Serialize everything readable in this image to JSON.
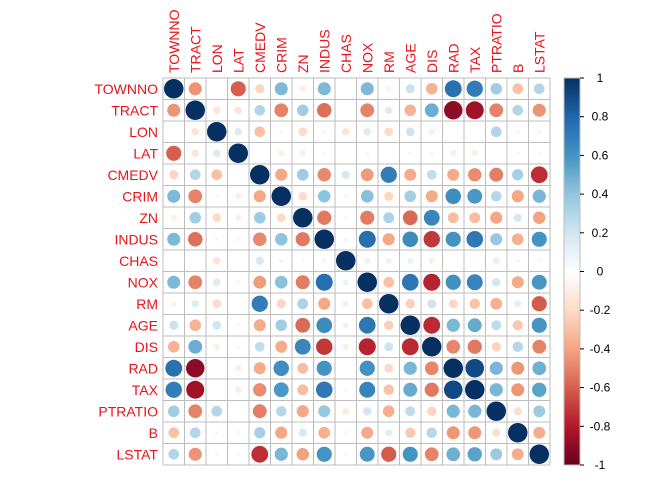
{
  "chart_data": {
    "type": "heatmap",
    "style": "circle correlation matrix",
    "variables": [
      "TOWNNO",
      "TRACT",
      "LON",
      "LAT",
      "CMEDV",
      "CRIM",
      "ZN",
      "INDUS",
      "CHAS",
      "NOX",
      "RM",
      "AGE",
      "DIS",
      "RAD",
      "TAX",
      "PTRATIO",
      "B",
      "LSTAT"
    ],
    "matrix": [
      [
        1.0,
        -0.45,
        0.0,
        -0.6,
        -0.22,
        0.45,
        -0.1,
        0.45,
        0.0,
        0.45,
        -0.08,
        0.22,
        -0.35,
        0.75,
        0.7,
        0.35,
        -0.3,
        0.3
      ],
      [
        -0.45,
        1.0,
        -0.15,
        -0.15,
        0.3,
        -0.5,
        0.35,
        -0.55,
        0.0,
        -0.5,
        0.15,
        -0.35,
        0.5,
        -0.9,
        -0.85,
        -0.5,
        0.3,
        -0.45
      ],
      [
        0.0,
        -0.15,
        1.0,
        0.15,
        -0.3,
        -0.05,
        -0.2,
        0.05,
        -0.15,
        0.15,
        -0.2,
        0.2,
        -0.1,
        0.0,
        0.0,
        0.3,
        -0.05,
        0.05
      ],
      [
        -0.6,
        -0.15,
        0.15,
        1.0,
        0.0,
        -0.1,
        -0.1,
        -0.05,
        0.0,
        -0.05,
        0.0,
        -0.05,
        -0.05,
        -0.1,
        -0.1,
        0.0,
        0.05,
        -0.05
      ],
      [
        -0.22,
        0.3,
        -0.3,
        0.0,
        1.0,
        -0.39,
        0.36,
        -0.48,
        0.18,
        -0.43,
        0.7,
        -0.38,
        0.25,
        -0.38,
        -0.47,
        -0.51,
        0.33,
        -0.74
      ],
      [
        0.45,
        -0.5,
        -0.05,
        -0.1,
        -0.39,
        1.0,
        -0.2,
        0.41,
        -0.06,
        0.42,
        -0.22,
        0.35,
        -0.38,
        0.63,
        0.58,
        0.29,
        -0.39,
        0.46
      ],
      [
        -0.1,
        0.35,
        -0.2,
        -0.1,
        0.36,
        -0.2,
        1.0,
        -0.53,
        -0.04,
        -0.52,
        0.31,
        -0.57,
        0.66,
        -0.31,
        -0.31,
        -0.39,
        0.18,
        -0.41
      ],
      [
        0.45,
        -0.55,
        0.05,
        -0.05,
        -0.48,
        0.41,
        -0.53,
        1.0,
        0.06,
        0.76,
        -0.39,
        0.64,
        -0.71,
        0.6,
        0.72,
        0.38,
        -0.36,
        0.6
      ],
      [
        0.0,
        0.0,
        -0.15,
        0.0,
        0.18,
        -0.06,
        -0.04,
        0.06,
        1.0,
        0.09,
        0.09,
        0.09,
        -0.1,
        -0.01,
        -0.04,
        -0.12,
        0.05,
        -0.05
      ],
      [
        0.45,
        -0.5,
        0.15,
        -0.05,
        -0.43,
        0.42,
        -0.52,
        0.76,
        0.09,
        1.0,
        -0.3,
        0.73,
        -0.77,
        0.61,
        0.67,
        0.19,
        -0.38,
        0.59
      ],
      [
        -0.08,
        0.15,
        -0.2,
        0.0,
        0.7,
        -0.22,
        0.31,
        -0.39,
        0.09,
        -0.3,
        1.0,
        -0.24,
        0.21,
        -0.21,
        -0.29,
        -0.36,
        0.13,
        -0.61
      ],
      [
        0.22,
        -0.35,
        0.2,
        -0.05,
        -0.38,
        0.35,
        -0.57,
        0.64,
        0.09,
        0.73,
        -0.24,
        1.0,
        -0.75,
        0.46,
        0.51,
        0.26,
        -0.27,
        0.6
      ],
      [
        -0.35,
        0.5,
        -0.1,
        -0.05,
        0.25,
        -0.38,
        0.66,
        -0.71,
        -0.1,
        -0.77,
        0.21,
        -0.75,
        1.0,
        -0.49,
        -0.53,
        -0.23,
        0.29,
        -0.5
      ],
      [
        0.75,
        -0.9,
        0.0,
        -0.1,
        -0.38,
        0.63,
        -0.31,
        0.6,
        -0.01,
        0.61,
        -0.21,
        0.46,
        -0.49,
        1.0,
        0.91,
        0.46,
        -0.44,
        0.49
      ],
      [
        0.7,
        -0.85,
        0.0,
        -0.1,
        -0.47,
        0.58,
        -0.31,
        0.72,
        -0.04,
        0.67,
        -0.29,
        0.51,
        -0.53,
        0.91,
        1.0,
        0.46,
        -0.44,
        0.54
      ],
      [
        0.35,
        -0.5,
        0.3,
        0.0,
        -0.51,
        0.29,
        -0.39,
        0.38,
        -0.12,
        0.19,
        -0.36,
        0.26,
        -0.23,
        0.46,
        0.46,
        1.0,
        -0.18,
        0.37
      ],
      [
        -0.3,
        0.3,
        -0.05,
        0.05,
        0.33,
        -0.39,
        0.18,
        -0.36,
        0.05,
        -0.38,
        0.13,
        -0.27,
        0.29,
        -0.44,
        -0.44,
        -0.18,
        1.0,
        -0.37
      ],
      [
        0.3,
        -0.45,
        0.05,
        -0.05,
        -0.74,
        0.46,
        -0.41,
        0.6,
        -0.05,
        0.59,
        -0.61,
        0.6,
        -0.5,
        0.49,
        0.54,
        0.37,
        -0.37,
        1.0
      ]
    ],
    "color_scale": {
      "range": [
        -1,
        1
      ],
      "ticks": [
        "1",
        "0.8",
        "0.6",
        "0.4",
        "0.2",
        "0",
        "-0.2",
        "-0.4",
        "-0.6",
        "-0.8",
        "-1"
      ],
      "colors": [
        "#67001F",
        "#B2182B",
        "#D6604D",
        "#F4A582",
        "#FDDBC7",
        "#FFFFFF",
        "#D1E5F0",
        "#92C5DE",
        "#4393C3",
        "#2166AC",
        "#053061"
      ]
    },
    "label_color": "#E8131B",
    "grid": true,
    "legend": "right"
  }
}
